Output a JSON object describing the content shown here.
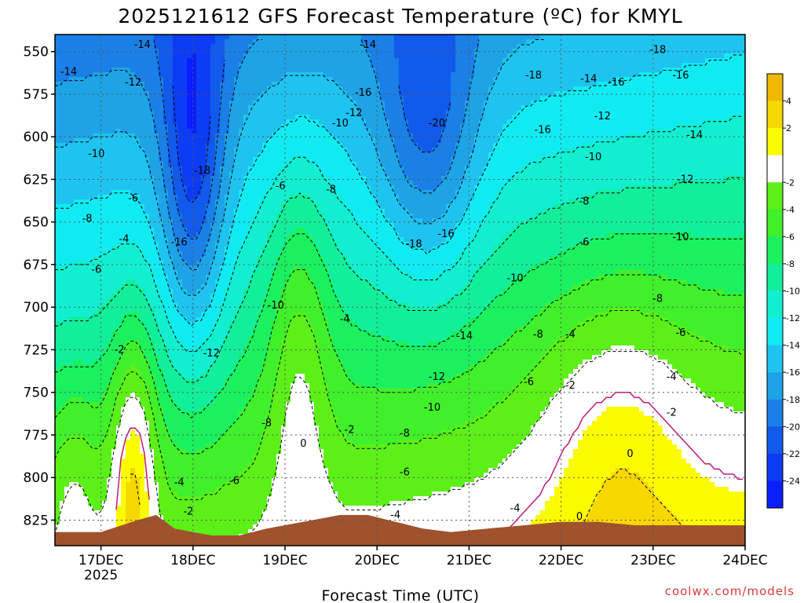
{
  "chart_data": {
    "type": "heatmap",
    "title": "2025121612 GFS Forecast Temperature (ºC) for KMYL",
    "xlabel": "Forecast Time (UTC)",
    "ylabel": "",
    "credit": "coolwx.com/models",
    "y_axis": {
      "ticks": [
        550,
        575,
        600,
        625,
        650,
        675,
        700,
        725,
        750,
        775,
        800,
        825
      ],
      "range": [
        540,
        840
      ],
      "inverted": true
    },
    "x_axis": {
      "ticks": [
        {
          "label": "17DEC",
          "sub": "2025",
          "day": 17
        },
        {
          "label": "18DEC",
          "sub": "",
          "day": 18
        },
        {
          "label": "19DEC",
          "sub": "",
          "day": 19
        },
        {
          "label": "20DEC",
          "sub": "",
          "day": 20
        },
        {
          "label": "21DEC",
          "sub": "",
          "day": 21
        },
        {
          "label": "22DEC",
          "sub": "",
          "day": 22
        },
        {
          "label": "23DEC",
          "sub": "",
          "day": 23
        },
        {
          "label": "24DEC",
          "sub": "",
          "day": 24
        }
      ],
      "range": [
        16.5,
        24.0
      ]
    },
    "grid": true,
    "colorbar": {
      "placement": "right",
      "levels": [
        {
          "label": "-24",
          "color": "#0a1eff"
        },
        {
          "label": "-22",
          "color": "#0d3cf5"
        },
        {
          "label": "-20",
          "color": "#115aec"
        },
        {
          "label": "-18",
          "color": "#1a7fe6"
        },
        {
          "label": "-16",
          "color": "#1ea3e6"
        },
        {
          "label": "-14",
          "color": "#1fc3ef"
        },
        {
          "label": "-12",
          "color": "#10ebf2"
        },
        {
          "label": "-10",
          "color": "#11eed0"
        },
        {
          "label": "-8",
          "color": "#12ef9b"
        },
        {
          "label": "-6",
          "color": "#1bf05f"
        },
        {
          "label": "-4",
          "color": "#40f02b"
        },
        {
          "label": "-2",
          "color": "#5cf018"
        },
        {
          "label": "",
          "color": "#ffffff"
        },
        {
          "label": "2",
          "color": "#fbfb00"
        },
        {
          "label": "4",
          "color": "#f7d700"
        }
      ],
      "extra_top_color": "#f0b800"
    },
    "terrain_color": "#a0522d",
    "contour_labels": [
      {
        "text": "-14",
        "day": 16.65,
        "p": 562
      },
      {
        "text": "-14",
        "day": 17.45,
        "p": 546
      },
      {
        "text": "-12",
        "day": 17.35,
        "p": 568
      },
      {
        "text": "-14",
        "day": 19.9,
        "p": 546
      },
      {
        "text": "-16",
        "day": 19.85,
        "p": 574
      },
      {
        "text": "-18",
        "day": 21.7,
        "p": 564
      },
      {
        "text": "-14",
        "day": 22.3,
        "p": 566
      },
      {
        "text": "-16",
        "day": 22.6,
        "p": 568
      },
      {
        "text": "-18",
        "day": 23.05,
        "p": 549
      },
      {
        "text": "-16",
        "day": 23.3,
        "p": 564
      },
      {
        "text": "-12",
        "day": 19.75,
        "p": 586
      },
      {
        "text": "-10",
        "day": 19.6,
        "p": 592
      },
      {
        "text": "-20",
        "day": 20.65,
        "p": 592
      },
      {
        "text": "-16",
        "day": 21.8,
        "p": 596
      },
      {
        "text": "-12",
        "day": 22.45,
        "p": 588
      },
      {
        "text": "-14",
        "day": 23.45,
        "p": 599
      },
      {
        "text": "-10",
        "day": 16.95,
        "p": 610
      },
      {
        "text": "-10",
        "day": 22.35,
        "p": 612
      },
      {
        "text": "-18",
        "day": 18.1,
        "p": 620
      },
      {
        "text": "-12",
        "day": 23.35,
        "p": 625
      },
      {
        "text": "-6",
        "day": 18.95,
        "p": 629
      },
      {
        "text": "-8",
        "day": 19.5,
        "p": 631
      },
      {
        "text": "-6",
        "day": 17.35,
        "p": 636
      },
      {
        "text": "-8",
        "day": 22.25,
        "p": 638
      },
      {
        "text": "-8",
        "day": 16.85,
        "p": 648
      },
      {
        "text": "-16",
        "day": 20.75,
        "p": 657
      },
      {
        "text": "-4",
        "day": 17.25,
        "p": 660
      },
      {
        "text": "-16",
        "day": 17.85,
        "p": 662
      },
      {
        "text": "-18",
        "day": 20.4,
        "p": 663
      },
      {
        "text": "-10",
        "day": 23.3,
        "p": 659
      },
      {
        "text": "-6",
        "day": 22.25,
        "p": 662
      },
      {
        "text": "-6",
        "day": 16.95,
        "p": 678
      },
      {
        "text": "-10",
        "day": 21.5,
        "p": 683
      },
      {
        "text": "-8",
        "day": 23.05,
        "p": 695
      },
      {
        "text": "-10",
        "day": 18.9,
        "p": 699
      },
      {
        "text": "-4",
        "day": 19.65,
        "p": 707
      },
      {
        "text": "-8",
        "day": 21.75,
        "p": 716
      },
      {
        "text": "-4",
        "day": 22.1,
        "p": 716
      },
      {
        "text": "-14",
        "day": 20.95,
        "p": 717
      },
      {
        "text": "-6",
        "day": 23.3,
        "p": 715
      },
      {
        "text": "-2",
        "day": 17.2,
        "p": 725
      },
      {
        "text": "-12",
        "day": 18.2,
        "p": 727
      },
      {
        "text": "-12",
        "day": 20.65,
        "p": 741
      },
      {
        "text": "-4",
        "day": 23.2,
        "p": 741
      },
      {
        "text": "-6",
        "day": 21.65,
        "p": 744
      },
      {
        "text": "-2",
        "day": 22.1,
        "p": 746
      },
      {
        "text": "-10",
        "day": 20.6,
        "p": 759
      },
      {
        "text": "-2",
        "day": 23.2,
        "p": 762
      },
      {
        "text": "-8",
        "day": 18.8,
        "p": 768
      },
      {
        "text": "-2",
        "day": 19.7,
        "p": 772
      },
      {
        "text": "-8",
        "day": 20.3,
        "p": 774
      },
      {
        "text": "0",
        "day": 19.2,
        "p": 780
      },
      {
        "text": "0",
        "day": 22.75,
        "p": 786
      },
      {
        "text": "-6",
        "day": 20.3,
        "p": 797
      },
      {
        "text": "-4",
        "day": 17.85,
        "p": 803
      },
      {
        "text": "-6",
        "day": 18.45,
        "p": 802
      },
      {
        "text": "-2",
        "day": 17.95,
        "p": 820
      },
      {
        "text": "-4",
        "day": 21.5,
        "p": 818
      },
      {
        "text": "-4",
        "day": 20.2,
        "p": 822
      },
      {
        "text": "0",
        "day": 22.2,
        "p": 823
      }
    ]
  }
}
